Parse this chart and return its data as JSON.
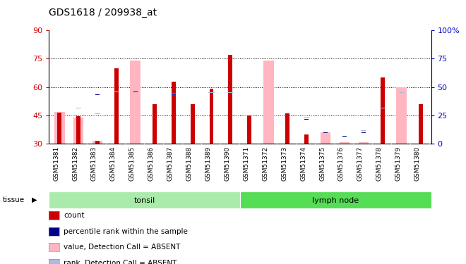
{
  "title": "GDS1618 / 209938_at",
  "samples": [
    "GSM51381",
    "GSM51382",
    "GSM51383",
    "GSM51384",
    "GSM51385",
    "GSM51386",
    "GSM51387",
    "GSM51388",
    "GSM51389",
    "GSM51390",
    "GSM51371",
    "GSM51372",
    "GSM51373",
    "GSM51374",
    "GSM51375",
    "GSM51376",
    "GSM51377",
    "GSM51378",
    "GSM51379",
    "GSM51380"
  ],
  "ylim_left": [
    30,
    90
  ],
  "ylim_right": [
    0,
    100
  ],
  "yticks_left": [
    30,
    45,
    60,
    75,
    90
  ],
  "yticks_right": [
    0,
    25,
    50,
    75,
    100
  ],
  "baseline": 30,
  "red_bar_tops": [
    46.5,
    44.5,
    31.5,
    70,
    30,
    51,
    63,
    51,
    59,
    77,
    45,
    27,
    46,
    35,
    30,
    30,
    30,
    65,
    30,
    51
  ],
  "pink_bar_tops": [
    47,
    44,
    31.5,
    30,
    74,
    30,
    30,
    30,
    30,
    30,
    30,
    74,
    30,
    30,
    36,
    31,
    31,
    30,
    60,
    30
  ],
  "blue_sq_vals": [
    57,
    57,
    56,
    57,
    57.5,
    51,
    56,
    51,
    57,
    57,
    48,
    48,
    51,
    43,
    36,
    34,
    36,
    48,
    57,
    51
  ],
  "lightblue_sq_vals": [
    48,
    49,
    46,
    57.5,
    57.5,
    51,
    56.5,
    51,
    57,
    57,
    48,
    51,
    51,
    44,
    36,
    35,
    37,
    49,
    57,
    51
  ],
  "tissue_groups": [
    {
      "label": "tonsil",
      "start": 0,
      "end": 10,
      "color": "#aaeaaa"
    },
    {
      "label": "lymph node",
      "start": 10,
      "end": 20,
      "color": "#55dd55"
    }
  ],
  "red_color": "#CC0000",
  "pink_color": "#FFB6C1",
  "blue_color": "#00008B",
  "lightblue_color": "#AABBDD",
  "left_axis_color": "#CC0000",
  "right_axis_color": "#0000CC",
  "legend_items": [
    {
      "label": "count",
      "color": "#CC0000"
    },
    {
      "label": "percentile rank within the sample",
      "color": "#00008B"
    },
    {
      "label": "value, Detection Call = ABSENT",
      "color": "#FFB6C1"
    },
    {
      "label": "rank, Detection Call = ABSENT",
      "color": "#AABBDD"
    }
  ]
}
